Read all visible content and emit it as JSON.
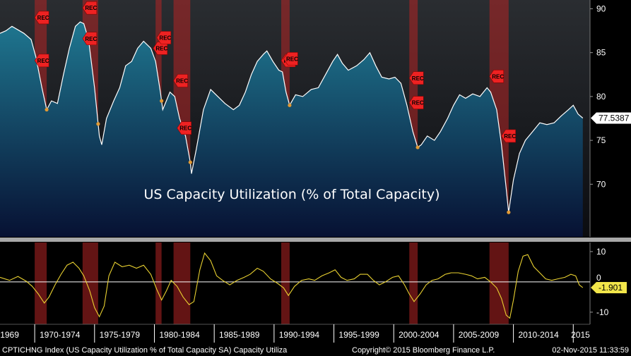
{
  "chart_data": [
    {
      "type": "area",
      "title": "US Capacity Utilization (% of Total Capacity)",
      "ylim": [
        64,
        91
      ],
      "y_ticks": [
        70,
        75,
        80,
        85,
        90
      ],
      "last_value_label": "77.5387",
      "series": [
        {
          "values": [
            [
              1967.0,
              87.2
            ],
            [
              1967.5,
              87.5
            ],
            [
              1968.0,
              88.0
            ],
            [
              1968.5,
              87.6
            ],
            [
              1969.0,
              87.2
            ],
            [
              1969.6,
              86.5
            ],
            [
              1970.0,
              84.5
            ],
            [
              1970.5,
              81.0
            ],
            [
              1970.9,
              78.5
            ],
            [
              1971.3,
              79.5
            ],
            [
              1971.8,
              79.2
            ],
            [
              1972.3,
              82.5
            ],
            [
              1972.8,
              85.5
            ],
            [
              1973.3,
              88.0
            ],
            [
              1973.7,
              88.5
            ],
            [
              1974.0,
              88.3
            ],
            [
              1974.4,
              86.5
            ],
            [
              1974.9,
              81.0
            ],
            [
              1975.3,
              75.5
            ],
            [
              1975.5,
              74.5
            ],
            [
              1975.9,
              77.5
            ],
            [
              1976.5,
              79.5
            ],
            [
              1977.0,
              81.0
            ],
            [
              1977.5,
              83.5
            ],
            [
              1978.0,
              84.0
            ],
            [
              1978.5,
              85.5
            ],
            [
              1979.0,
              86.3
            ],
            [
              1979.6,
              85.5
            ],
            [
              1980.0,
              84.0
            ],
            [
              1980.4,
              80.5
            ],
            [
              1980.6,
              78.5
            ],
            [
              1980.9,
              79.5
            ],
            [
              1981.2,
              80.5
            ],
            [
              1981.6,
              80.0
            ],
            [
              1982.0,
              77.5
            ],
            [
              1982.5,
              75.5
            ],
            [
              1982.9,
              72.5
            ],
            [
              1983.0,
              71.2
            ],
            [
              1983.4,
              74.0
            ],
            [
              1984.0,
              78.5
            ],
            [
              1984.6,
              80.8
            ],
            [
              1985.2,
              80.0
            ],
            [
              1985.8,
              79.2
            ],
            [
              1986.5,
              78.5
            ],
            [
              1987.0,
              79.0
            ],
            [
              1987.5,
              80.5
            ],
            [
              1988.0,
              82.5
            ],
            [
              1988.5,
              84.0
            ],
            [
              1989.0,
              84.8
            ],
            [
              1989.3,
              85.2
            ],
            [
              1989.8,
              84.0
            ],
            [
              1990.3,
              83.0
            ],
            [
              1990.6,
              82.8
            ],
            [
              1990.9,
              80.5
            ],
            [
              1991.2,
              79.0
            ],
            [
              1991.7,
              80.2
            ],
            [
              1992.3,
              80.0
            ],
            [
              1993.0,
              80.8
            ],
            [
              1993.6,
              81.0
            ],
            [
              1994.2,
              82.5
            ],
            [
              1994.8,
              84.0
            ],
            [
              1995.2,
              84.8
            ],
            [
              1995.6,
              83.8
            ],
            [
              1996.1,
              83.0
            ],
            [
              1996.8,
              83.5
            ],
            [
              1997.4,
              84.2
            ],
            [
              1997.9,
              85.0
            ],
            [
              1998.4,
              83.5
            ],
            [
              1998.9,
              82.2
            ],
            [
              1999.5,
              82.0
            ],
            [
              2000.0,
              82.2
            ],
            [
              2000.5,
              81.5
            ],
            [
              2001.0,
              79.0
            ],
            [
              2001.5,
              76.0
            ],
            [
              2001.9,
              74.2
            ],
            [
              2002.2,
              74.5
            ],
            [
              2002.7,
              75.5
            ],
            [
              2003.3,
              75.0
            ],
            [
              2003.8,
              76.0
            ],
            [
              2004.4,
              77.5
            ],
            [
              2004.9,
              79.0
            ],
            [
              2005.4,
              80.2
            ],
            [
              2005.9,
              79.8
            ],
            [
              2006.5,
              80.3
            ],
            [
              2007.1,
              80.0
            ],
            [
              2007.7,
              81.0
            ],
            [
              2008.0,
              80.5
            ],
            [
              2008.5,
              78.5
            ],
            [
              2008.9,
              74.5
            ],
            [
              2009.3,
              69.5
            ],
            [
              2009.5,
              66.8
            ],
            [
              2009.9,
              70.5
            ],
            [
              2010.4,
              73.5
            ],
            [
              2010.9,
              75.0
            ],
            [
              2011.5,
              76.0
            ],
            [
              2012.1,
              77.0
            ],
            [
              2012.7,
              76.8
            ],
            [
              2013.3,
              77.0
            ],
            [
              2013.9,
              77.8
            ],
            [
              2014.5,
              78.5
            ],
            [
              2014.9,
              79.0
            ],
            [
              2015.3,
              78.0
            ],
            [
              2015.7,
              77.5387
            ]
          ]
        }
      ],
      "recession_bands": [
        [
          1969.9,
          1970.9
        ],
        [
          1973.9,
          1975.2
        ],
        [
          1980.0,
          1980.5
        ],
        [
          1981.5,
          1982.9
        ],
        [
          1990.5,
          1991.2
        ],
        [
          2001.2,
          2001.9
        ],
        [
          2007.9,
          2009.5
        ]
      ],
      "rec_markers": [
        [
          1969.9,
          89.0
        ],
        [
          1969.9,
          84.1
        ],
        [
          1973.9,
          90.1
        ],
        [
          1973.9,
          86.6
        ],
        [
          1979.8,
          85.5
        ],
        [
          1980.1,
          86.7
        ],
        [
          1981.5,
          81.8
        ],
        [
          1981.8,
          76.4
        ],
        [
          1990.5,
          84.1
        ],
        [
          1990.7,
          84.3
        ],
        [
          2001.2,
          82.1
        ],
        [
          2001.2,
          79.3
        ],
        [
          2007.9,
          82.3
        ],
        [
          2008.9,
          75.5
        ]
      ],
      "rec_label": "REC"
    },
    {
      "type": "line",
      "ylim": [
        -14,
        13
      ],
      "y_ticks": [
        10,
        -10
      ],
      "zero_tick_label": "0",
      "last_value_label": "-1.901",
      "series": [
        {
          "values": [
            [
              1967.0,
              1.5
            ],
            [
              1967.8,
              0.5
            ],
            [
              1968.5,
              1.8
            ],
            [
              1969.2,
              0.2
            ],
            [
              1969.7,
              -1.5
            ],
            [
              1970.2,
              -4.0
            ],
            [
              1970.7,
              -7.0
            ],
            [
              1971.1,
              -5.0
            ],
            [
              1971.6,
              -1.0
            ],
            [
              1972.1,
              2.5
            ],
            [
              1972.6,
              5.5
            ],
            [
              1973.1,
              6.5
            ],
            [
              1973.6,
              4.5
            ],
            [
              1974.0,
              2.0
            ],
            [
              1974.5,
              -3.0
            ],
            [
              1974.9,
              -8.5
            ],
            [
              1975.3,
              -11.5
            ],
            [
              1975.7,
              -8.0
            ],
            [
              1976.1,
              2.0
            ],
            [
              1976.6,
              6.5
            ],
            [
              1977.2,
              5.0
            ],
            [
              1977.8,
              5.5
            ],
            [
              1978.4,
              4.5
            ],
            [
              1979.0,
              5.5
            ],
            [
              1979.6,
              2.5
            ],
            [
              1980.1,
              -2.5
            ],
            [
              1980.5,
              -6.0
            ],
            [
              1980.9,
              -3.0
            ],
            [
              1981.3,
              0.5
            ],
            [
              1981.8,
              -1.5
            ],
            [
              1982.3,
              -5.0
            ],
            [
              1982.8,
              -7.5
            ],
            [
              1983.2,
              -6.5
            ],
            [
              1983.7,
              4.0
            ],
            [
              1984.1,
              9.5
            ],
            [
              1984.6,
              7.0
            ],
            [
              1985.1,
              2.0
            ],
            [
              1985.6,
              0.5
            ],
            [
              1986.2,
              -1.0
            ],
            [
              1986.8,
              0.5
            ],
            [
              1987.4,
              1.5
            ],
            [
              1987.9,
              2.5
            ],
            [
              1988.5,
              4.5
            ],
            [
              1989.0,
              3.5
            ],
            [
              1989.6,
              1.0
            ],
            [
              1990.2,
              -0.5
            ],
            [
              1990.7,
              -2.0
            ],
            [
              1991.1,
              -4.5
            ],
            [
              1991.6,
              -1.5
            ],
            [
              1992.2,
              0.5
            ],
            [
              1992.8,
              1.0
            ],
            [
              1993.3,
              0.5
            ],
            [
              1993.9,
              2.0
            ],
            [
              1994.5,
              3.0
            ],
            [
              1995.0,
              4.0
            ],
            [
              1995.5,
              1.5
            ],
            [
              1996.0,
              0.5
            ],
            [
              1996.6,
              1.0
            ],
            [
              1997.1,
              2.5
            ],
            [
              1997.7,
              2.5
            ],
            [
              1998.2,
              0.5
            ],
            [
              1998.7,
              -1.0
            ],
            [
              1999.2,
              0.0
            ],
            [
              1999.8,
              1.5
            ],
            [
              2000.3,
              2.0
            ],
            [
              2000.8,
              -1.0
            ],
            [
              2001.2,
              -4.0
            ],
            [
              2001.6,
              -6.5
            ],
            [
              2002.1,
              -4.0
            ],
            [
              2002.6,
              -1.0
            ],
            [
              2003.1,
              0.5
            ],
            [
              2003.6,
              1.0
            ],
            [
              2004.2,
              2.5
            ],
            [
              2004.7,
              3.0
            ],
            [
              2005.3,
              3.0
            ],
            [
              2005.9,
              2.5
            ],
            [
              2006.4,
              2.0
            ],
            [
              2006.9,
              1.0
            ],
            [
              2007.5,
              1.5
            ],
            [
              2008.0,
              0.0
            ],
            [
              2008.5,
              -2.0
            ],
            [
              2008.9,
              -5.5
            ],
            [
              2009.3,
              -11.0
            ],
            [
              2009.6,
              -12.0
            ],
            [
              2009.9,
              -6.0
            ],
            [
              2010.3,
              3.5
            ],
            [
              2010.7,
              8.5
            ],
            [
              2011.1,
              9.0
            ],
            [
              2011.6,
              5.0
            ],
            [
              2012.1,
              3.0
            ],
            [
              2012.6,
              1.0
            ],
            [
              2013.1,
              0.5
            ],
            [
              2013.6,
              1.0
            ],
            [
              2014.2,
              1.5
            ],
            [
              2014.7,
              2.5
            ],
            [
              2015.1,
              2.0
            ],
            [
              2015.4,
              -1.0
            ],
            [
              2015.7,
              -1.901
            ]
          ]
        }
      ]
    }
  ],
  "x_axis": {
    "xlim": [
      1967.0,
      2016.3
    ],
    "tick_labels": [
      "1969",
      "1970-1974",
      "1975-1979",
      "1980-1984",
      "1985-1989",
      "1990-1994",
      "1995-1999",
      "2000-2004",
      "2005-2009",
      "2010-2014",
      "2015"
    ],
    "tick_centers": [
      1967.8,
      1972.0,
      1977.0,
      1982.0,
      1987.0,
      1992.0,
      1997.0,
      2002.0,
      2007.0,
      2012.0,
      2015.5
    ],
    "separators": [
      1969.9,
      1974.9,
      1979.9,
      1984.9,
      1989.9,
      1994.9,
      1999.9,
      2004.9,
      2009.9,
      2014.9
    ]
  },
  "footer": {
    "left": "CPTICHNG Index (US Capacity Utilization % of Total Capacity SA) Capacity Utiliza",
    "copyright": "Copyright© 2015 Bloomberg Finance L.P.",
    "timestamp": "02-Nov-2015 11:33:59"
  },
  "colors": {
    "background": "#000000",
    "area_top": "#1f7790",
    "area_bottom": "#071133",
    "line": "#ffffff",
    "recession": "#b52424",
    "rec_marker": "#ee2222",
    "dot": "#e29a34",
    "lower_line": "#e8d030",
    "lower_last_bg": "#f2e64a",
    "divider": "#a8a8a8"
  }
}
